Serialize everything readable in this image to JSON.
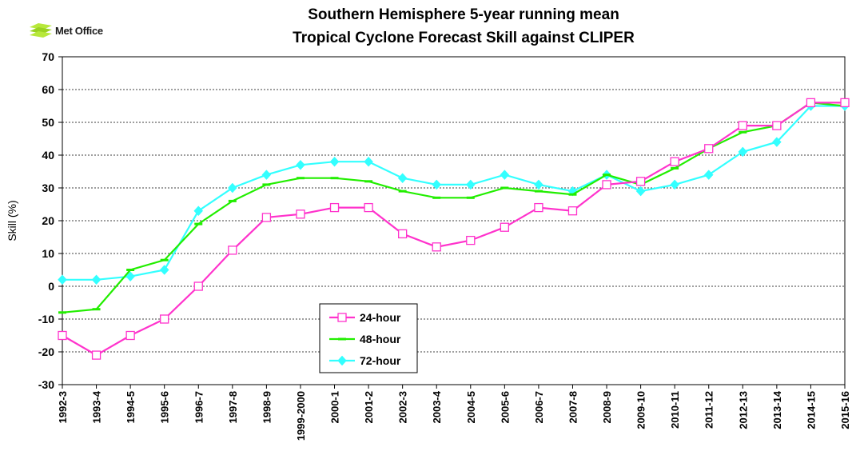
{
  "logo": {
    "text": "Met Office"
  },
  "chart_data": {
    "type": "line",
    "title": "Southern Hemisphere 5-year running mean",
    "subtitle": "Tropical Cyclone Forecast Skill against CLIPER",
    "ylabel": "Skill (%)",
    "xlabel": "",
    "ylim": [
      -30,
      70
    ],
    "yticks": [
      70,
      60,
      50,
      40,
      30,
      20,
      10,
      0,
      -10,
      -20,
      -30
    ],
    "grid": "horizontal dashed",
    "legend_position": "lower-center-left",
    "categories": [
      "1992-3",
      "1993-4",
      "1994-5",
      "1995-6",
      "1996-7",
      "1997-8",
      "1998-9",
      "1999-2000",
      "2000-1",
      "2001-2",
      "2002-3",
      "2003-4",
      "2004-5",
      "2005-6",
      "2006-7",
      "2007-8",
      "2008-9",
      "2009-10",
      "2010-11",
      "2011-12",
      "2012-13",
      "2013-14",
      "2014-15",
      "2015-16"
    ],
    "series": [
      {
        "name": "24-hour",
        "color": "#ff33cc",
        "marker": "open-square",
        "values": [
          -15,
          -21,
          -15,
          -10,
          0,
          11,
          21,
          22,
          24,
          24,
          16,
          12,
          14,
          18,
          24,
          23,
          31,
          32,
          38,
          42,
          49,
          49,
          56,
          56
        ]
      },
      {
        "name": "48-hour",
        "color": "#22ee00",
        "marker": "dash",
        "values": [
          -8,
          -7,
          5,
          8,
          19,
          26,
          31,
          33,
          33,
          32,
          29,
          27,
          27,
          30,
          29,
          28,
          34,
          31,
          36,
          42,
          47,
          49,
          56,
          55
        ]
      },
      {
        "name": "72-hour",
        "color": "#33ffff",
        "marker": "diamond",
        "values": [
          2,
          2,
          3,
          5,
          23,
          30,
          34,
          37,
          38,
          38,
          33,
          31,
          31,
          34,
          31,
          29,
          34,
          29,
          31,
          34,
          41,
          44,
          55,
          55
        ]
      }
    ]
  }
}
